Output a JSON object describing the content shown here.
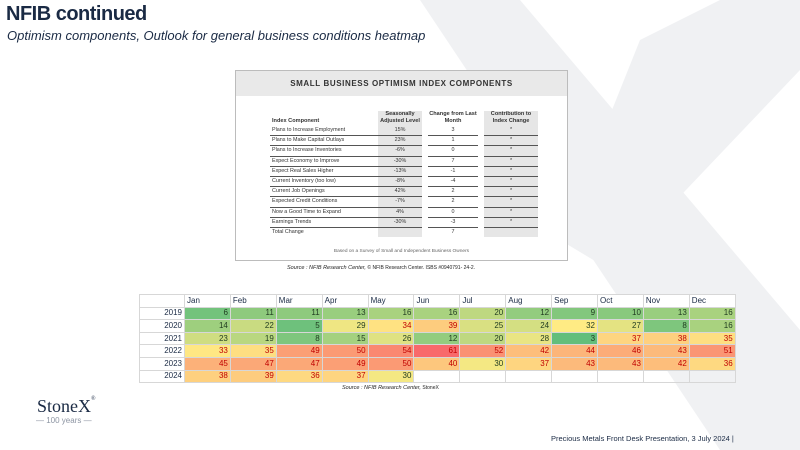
{
  "header": {
    "title": "NFIB continued",
    "subtitle": "Optimism components, Outlook for general business conditions heatmap"
  },
  "components_panel": {
    "title": "SMALL BUSINESS OPTIMISM INDEX COMPONENTS",
    "columns": [
      "Index Component",
      "Seasonally Adjusted Level",
      "Change from Last Month",
      "Contribution to Index Change"
    ],
    "rows": [
      {
        "name": "Plans to Increase Employment",
        "level": "15%",
        "change": "3",
        "contribution": "*"
      },
      {
        "name": "Plans to Make Capital Outlays",
        "level": "23%",
        "change": "1",
        "contribution": "*"
      },
      {
        "name": "Plans to Increase Inventories",
        "level": "-6%",
        "change": "0",
        "contribution": "*"
      },
      {
        "name": "Expect Economy to Improve",
        "level": "-30%",
        "change": "7",
        "contribution": "*"
      },
      {
        "name": "Expect Real Sales Higher",
        "level": "-13%",
        "change": "-1",
        "contribution": "*"
      },
      {
        "name": "Current Inventory (too low)",
        "level": "-8%",
        "change": "-4",
        "contribution": "*"
      },
      {
        "name": "Current Job Openings",
        "level": "42%",
        "change": "2",
        "contribution": "*"
      },
      {
        "name": "Expected Credit Conditions",
        "level": "-7%",
        "change": "2",
        "contribution": "*"
      },
      {
        "name": "Now a Good Time to Expand",
        "level": "4%",
        "change": "0",
        "contribution": "*"
      },
      {
        "name": "Earnings Trends",
        "level": "-30%",
        "change": "-3",
        "contribution": "*"
      }
    ],
    "total": {
      "name": "Total Change",
      "change": "7"
    },
    "footnote": "Based on a Survey of Small and Independent Business Owners"
  },
  "source1": {
    "text": "Source : NFIB Research Center,",
    "attribution": "© NFIB Research Center. ISBS #0940791- 24-2."
  },
  "heatmap": {
    "months": [
      "Jan",
      "Feb",
      "Mar",
      "Apr",
      "May",
      "Jun",
      "Jul",
      "Aug",
      "Sep",
      "Oct",
      "Nov",
      "Dec"
    ],
    "rows": [
      {
        "year": "2019",
        "values": [
          6,
          11,
          11,
          13,
          16,
          16,
          20,
          12,
          9,
          10,
          13,
          16
        ]
      },
      {
        "year": "2020",
        "values": [
          14,
          22,
          5,
          29,
          34,
          39,
          25,
          24,
          32,
          27,
          8,
          16
        ]
      },
      {
        "year": "2021",
        "values": [
          23,
          19,
          8,
          15,
          26,
          12,
          20,
          28,
          3,
          37,
          38,
          35
        ]
      },
      {
        "year": "2022",
        "values": [
          33,
          35,
          49,
          50,
          54,
          61,
          52,
          42,
          44,
          46,
          43,
          51
        ]
      },
      {
        "year": "2023",
        "values": [
          45,
          47,
          47,
          49,
          50,
          40,
          30,
          37,
          43,
          43,
          42,
          36
        ]
      },
      {
        "year": "2024",
        "values": [
          38,
          39,
          36,
          37,
          30,
          null,
          null,
          null,
          null,
          null,
          null,
          null
        ]
      }
    ],
    "colors": {
      "positive_bg": "#63be7b",
      "neutral_bg": "#ffeb84",
      "negative_bg": "#f8696b",
      "positive_text": "#1f3a1f",
      "negative_text": "#c00000"
    }
  },
  "source2": {
    "text": "Source : NFIB Research Center,",
    "attribution": "StoneX"
  },
  "logo": {
    "name": "StoneX",
    "mark": "®",
    "tagline": "— 100 years —"
  },
  "footer": {
    "text": "Precious Metals Front Desk Presentation, 3 July 2024 |"
  }
}
